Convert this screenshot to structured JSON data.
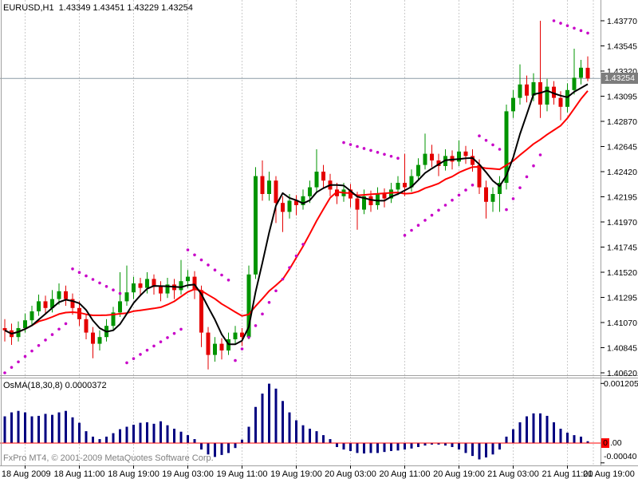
{
  "header": {
    "quote_line": "EURUSD,H1  1.43349 1.43451 1.43229 1.43254"
  },
  "footer": {
    "copyright": "FxPro MT4, © 2001-2009 MetaQuotes Software Corp."
  },
  "price_axis": {
    "labels": [
      "1.43770",
      "1.43545",
      "1.43320",
      "1.43095",
      "1.42870",
      "1.42645",
      "1.42420",
      "1.42195",
      "1.41970",
      "1.41745",
      "1.41520",
      "1.41295",
      "1.41070",
      "1.40845",
      "1.40620"
    ],
    "min": 1.4062,
    "max": 1.4377,
    "step": 0.00225,
    "current_price": "1.43254"
  },
  "time_axis": {
    "labels": [
      {
        "i": 3,
        "text": "18 Aug 2009"
      },
      {
        "i": 11,
        "text": "18 Aug 11:00"
      },
      {
        "i": 19,
        "text": "18 Aug 19:00"
      },
      {
        "i": 27,
        "text": "19 Aug 03:00"
      },
      {
        "i": 35,
        "text": "19 Aug 11:00"
      },
      {
        "i": 43,
        "text": "19 Aug 19:00"
      },
      {
        "i": 51,
        "text": "20 Aug 03:00"
      },
      {
        "i": 59,
        "text": "20 Aug 11:00"
      },
      {
        "i": 67,
        "text": "20 Aug 19:00"
      },
      {
        "i": 75,
        "text": "21 Aug 03:00"
      },
      {
        "i": 83,
        "text": "21 Aug 11:00"
      },
      {
        "i": 91,
        "text": "21 Aug 19:00"
      }
    ]
  },
  "indicator_panel": {
    "label": "OsMA(18,30,8) 0.0000372",
    "max_label": "0.001205",
    "min_label": "-0.00040",
    "zero_box": "0",
    "zero_suffix": ".00",
    "max": 0.001205,
    "min": -0.0004
  },
  "colors": {
    "background": "#FFFFFF",
    "grid": "#CBCBCB",
    "border": "#A0A0A0",
    "candle_up": "#009400",
    "candle_down": "#E40000",
    "ma_fast": "#000000",
    "ma_slow": "#FF0000",
    "sar_dots": "#C800C8",
    "osma_bar": "#000080",
    "zero_line": "#FF0000",
    "bid_line": "#8C9AA6",
    "badge_bg": "#7D7D7D",
    "text": "#000000",
    "muted_text": "#808080"
  },
  "chart_data": {
    "type": "candlestick",
    "symbol": "EURUSD",
    "timeframe": "H1",
    "start_time": "18 Aug 2009 00:00",
    "bid": 1.43254,
    "ylim": [
      1.4062,
      1.4377
    ],
    "grid": "vertical-dashed",
    "candles_ohlc": [
      [
        1.4102,
        1.411,
        1.409,
        1.41
      ],
      [
        1.41,
        1.4106,
        1.4087,
        1.4094
      ],
      [
        1.4094,
        1.4108,
        1.409,
        1.4102
      ],
      [
        1.4102,
        1.4115,
        1.4098,
        1.4109
      ],
      [
        1.4109,
        1.4122,
        1.4104,
        1.4117
      ],
      [
        1.4117,
        1.4132,
        1.4113,
        1.4126
      ],
      [
        1.4126,
        1.4131,
        1.4114,
        1.412
      ],
      [
        1.412,
        1.4136,
        1.4116,
        1.4128
      ],
      [
        1.4128,
        1.4142,
        1.4123,
        1.4135
      ],
      [
        1.4135,
        1.414,
        1.4122,
        1.4128
      ],
      [
        1.4128,
        1.4133,
        1.4114,
        1.412
      ],
      [
        1.412,
        1.4126,
        1.4104,
        1.411
      ],
      [
        1.411,
        1.4114,
        1.4092,
        1.4098
      ],
      [
        1.4098,
        1.4103,
        1.4075,
        1.4088
      ],
      [
        1.4088,
        1.41,
        1.4082,
        1.4094
      ],
      [
        1.4094,
        1.411,
        1.409,
        1.4104
      ],
      [
        1.4104,
        1.4121,
        1.41,
        1.4116
      ],
      [
        1.4116,
        1.4152,
        1.4112,
        1.4126
      ],
      [
        1.4126,
        1.4158,
        1.4122,
        1.4134
      ],
      [
        1.4134,
        1.4148,
        1.4128,
        1.4142
      ],
      [
        1.4142,
        1.4147,
        1.4131,
        1.4138
      ],
      [
        1.4138,
        1.4152,
        1.4133,
        1.4146
      ],
      [
        1.4146,
        1.415,
        1.4132,
        1.4139
      ],
      [
        1.4139,
        1.4144,
        1.4126,
        1.4133
      ],
      [
        1.4133,
        1.4147,
        1.4129,
        1.4141
      ],
      [
        1.4141,
        1.4146,
        1.4128,
        1.4136
      ],
      [
        1.4136,
        1.4163,
        1.4132,
        1.4144
      ],
      [
        1.4144,
        1.4154,
        1.4138,
        1.4148
      ],
      [
        1.4148,
        1.4153,
        1.4128,
        1.4136
      ],
      [
        1.4136,
        1.414,
        1.4085,
        1.4098
      ],
      [
        1.4098,
        1.4103,
        1.4065,
        1.4078
      ],
      [
        1.4078,
        1.4094,
        1.4072,
        1.4088
      ],
      [
        1.4088,
        1.4093,
        1.4074,
        1.4082
      ],
      [
        1.4082,
        1.4098,
        1.4078,
        1.4092
      ],
      [
        1.4092,
        1.4104,
        1.4088,
        1.4098
      ],
      [
        1.4098,
        1.4102,
        1.4086,
        1.4094
      ],
      [
        1.4094,
        1.4158,
        1.4092,
        1.415
      ],
      [
        1.415,
        1.4246,
        1.4146,
        1.4238
      ],
      [
        1.4238,
        1.4252,
        1.4216,
        1.4222
      ],
      [
        1.4222,
        1.4242,
        1.4216,
        1.4234
      ],
      [
        1.4234,
        1.4238,
        1.4196,
        1.4214
      ],
      [
        1.4214,
        1.422,
        1.4188,
        1.4206
      ],
      [
        1.4206,
        1.4222,
        1.42,
        1.4216
      ],
      [
        1.4216,
        1.4221,
        1.4203,
        1.4212
      ],
      [
        1.4212,
        1.4226,
        1.4208,
        1.422
      ],
      [
        1.422,
        1.4234,
        1.4214,
        1.4228
      ],
      [
        1.4228,
        1.4262,
        1.4224,
        1.4242
      ],
      [
        1.4242,
        1.4248,
        1.4228,
        1.4234
      ],
      [
        1.4234,
        1.424,
        1.422,
        1.4226
      ],
      [
        1.4226,
        1.4232,
        1.4213,
        1.422
      ],
      [
        1.422,
        1.4232,
        1.4215,
        1.4226
      ],
      [
        1.4226,
        1.4231,
        1.421,
        1.4218
      ],
      [
        1.4218,
        1.4224,
        1.419,
        1.4208
      ],
      [
        1.4208,
        1.4226,
        1.4204,
        1.422
      ],
      [
        1.422,
        1.4225,
        1.4206,
        1.4212
      ],
      [
        1.4212,
        1.4228,
        1.4208,
        1.4222
      ],
      [
        1.4222,
        1.4227,
        1.421,
        1.4218
      ],
      [
        1.4218,
        1.4232,
        1.4214,
        1.4226
      ],
      [
        1.4226,
        1.4238,
        1.4221,
        1.4232
      ],
      [
        1.4232,
        1.4258,
        1.422,
        1.4228
      ],
      [
        1.4228,
        1.4244,
        1.4224,
        1.4238
      ],
      [
        1.4238,
        1.4254,
        1.4234,
        1.4248
      ],
      [
        1.4248,
        1.4276,
        1.4244,
        1.4258
      ],
      [
        1.4258,
        1.4266,
        1.4246,
        1.4252
      ],
      [
        1.4252,
        1.4258,
        1.4238,
        1.4247
      ],
      [
        1.4247,
        1.4262,
        1.4243,
        1.4256
      ],
      [
        1.4256,
        1.4261,
        1.4244,
        1.4251
      ],
      [
        1.4251,
        1.427,
        1.4247,
        1.426
      ],
      [
        1.426,
        1.4265,
        1.4249,
        1.4256
      ],
      [
        1.4256,
        1.4262,
        1.4242,
        1.4248
      ],
      [
        1.4248,
        1.4253,
        1.4222,
        1.4228
      ],
      [
        1.4228,
        1.4234,
        1.42,
        1.4215
      ],
      [
        1.4215,
        1.4228,
        1.4206,
        1.4222
      ],
      [
        1.4222,
        1.4238,
        1.4206,
        1.4232
      ],
      [
        1.4232,
        1.4302,
        1.4226,
        1.4296
      ],
      [
        1.4296,
        1.4315,
        1.429,
        1.4308
      ],
      [
        1.4308,
        1.4338,
        1.4302,
        1.432
      ],
      [
        1.432,
        1.4328,
        1.4304,
        1.431
      ],
      [
        1.431,
        1.433,
        1.4305,
        1.4322
      ],
      [
        1.4322,
        1.4377,
        1.429,
        1.4302
      ],
      [
        1.4302,
        1.4325,
        1.4296,
        1.4318
      ],
      [
        1.4318,
        1.4323,
        1.4302,
        1.4308
      ],
      [
        1.4308,
        1.4314,
        1.4288,
        1.43
      ],
      [
        1.43,
        1.4321,
        1.4295,
        1.4315
      ],
      [
        1.4315,
        1.4352,
        1.4311,
        1.4326
      ],
      [
        1.4326,
        1.4342,
        1.432,
        1.4335
      ],
      [
        1.43349,
        1.43451,
        1.43229,
        1.43254
      ]
    ],
    "ma_fast": {
      "period": 5,
      "color": "#000000",
      "style": "solid"
    },
    "ma_slow": {
      "period": 13,
      "color": "#FF0000",
      "style": "solid"
    },
    "sar_segments": [
      {
        "side": "below",
        "from": 0,
        "to": 9,
        "p_from": 1.4062,
        "p_to": 1.4106
      },
      {
        "side": "above",
        "from": 10,
        "to": 17,
        "p_from": 1.4155,
        "p_to": 1.4133
      },
      {
        "side": "below",
        "from": 18,
        "to": 26,
        "p_from": 1.4071,
        "p_to": 1.4101
      },
      {
        "side": "above",
        "from": 27,
        "to": 33,
        "p_from": 1.4172,
        "p_to": 1.4145
      },
      {
        "side": "below",
        "from": 34,
        "to": 44,
        "p_from": 1.4073,
        "p_to": 1.4177
      },
      {
        "side": "above",
        "from": 50,
        "to": 58,
        "p_from": 1.4268,
        "p_to": 1.4254
      },
      {
        "side": "below",
        "from": 59,
        "to": 69,
        "p_from": 1.4185,
        "p_to": 1.423
      },
      {
        "side": "above",
        "from": 70,
        "to": 73,
        "p_from": 1.4274,
        "p_to": 1.4262
      },
      {
        "side": "below",
        "from": 74,
        "to": 79,
        "p_from": 1.4208,
        "p_to": 1.4257
      },
      {
        "side": "above",
        "from": 81,
        "to": 86,
        "p_from": 1.4377,
        "p_to": 1.4366
      }
    ],
    "osma": {
      "type": "bar",
      "params": "18,30,8",
      "current": 3.72e-05,
      "ylim": [
        -0.0004,
        0.001205
      ],
      "values": [
        0.00054,
        0.00062,
        0.00065,
        0.00062,
        0.00054,
        0.00055,
        0.00059,
        0.00057,
        0.00062,
        0.00065,
        0.00052,
        0.00041,
        0.00024,
        0.00013,
        8e-05,
        0.00013,
        0.0002,
        0.00028,
        0.00033,
        0.00037,
        0.00041,
        0.00042,
        0.00039,
        0.00044,
        0.00036,
        0.00029,
        0.00023,
        0.00016,
        8e-05,
        -0.00013,
        -0.00023,
        -0.00028,
        -0.00024,
        -0.0002,
        -0.0001,
        7e-05,
        0.00033,
        0.00073,
        0.001,
        0.0012,
        0.0011,
        0.00085,
        0.00062,
        0.00046,
        0.00036,
        0.00029,
        0.00024,
        0.00016,
        8e-05,
        -8e-05,
        -0.00013,
        -0.00016,
        -0.0002,
        -0.00021,
        -0.0002,
        -0.0002,
        -0.00018,
        -0.00016,
        -0.00015,
        -0.00013,
        -0.00011,
        -8e-05,
        -5e-05,
        -3e-05,
        -3e-05,
        -5e-05,
        -8e-05,
        -0.00013,
        -0.0002,
        -0.00026,
        -0.00033,
        -0.00029,
        -0.00023,
        -0.00013,
        0.00013,
        0.00028,
        0.00042,
        0.00054,
        0.0006,
        0.0006,
        0.00055,
        0.00042,
        0.00029,
        0.00021,
        0.00016,
        0.00013,
        3.72e-05
      ]
    }
  }
}
